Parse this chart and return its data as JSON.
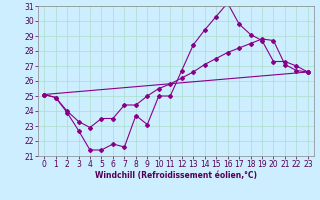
{
  "xlabel": "Windchill (Refroidissement éolien,°C)",
  "bg_color": "#cceeff",
  "grid_color": "#aaddcc",
  "line_color": "#880088",
  "xlim": [
    -0.5,
    23.5
  ],
  "ylim": [
    21,
    31
  ],
  "yticks": [
    21,
    22,
    23,
    24,
    25,
    26,
    27,
    28,
    29,
    30,
    31
  ],
  "xticks": [
    0,
    1,
    2,
    3,
    4,
    5,
    6,
    7,
    8,
    9,
    10,
    11,
    12,
    13,
    14,
    15,
    16,
    17,
    18,
    19,
    20,
    21,
    22,
    23
  ],
  "line1_x": [
    0,
    1,
    2,
    3,
    4,
    5,
    6,
    7,
    8,
    9,
    10,
    11,
    12,
    13,
    14,
    15,
    16,
    17,
    18,
    19,
    20,
    21,
    22,
    23
  ],
  "line1_y": [
    25.1,
    24.9,
    23.9,
    22.7,
    21.4,
    21.4,
    21.8,
    21.6,
    23.7,
    23.1,
    25.0,
    25.0,
    26.7,
    28.4,
    29.4,
    30.3,
    31.2,
    29.8,
    29.1,
    28.7,
    27.3,
    27.3,
    27.0,
    26.6
  ],
  "line2_x": [
    0,
    1,
    2,
    3,
    4,
    5,
    6,
    7,
    8,
    9,
    10,
    11,
    12,
    13,
    14,
    15,
    16,
    17,
    18,
    19,
    20,
    21,
    22,
    23
  ],
  "line2_y": [
    25.1,
    24.9,
    24.0,
    23.3,
    22.9,
    23.5,
    23.5,
    24.4,
    24.4,
    25.0,
    25.5,
    25.8,
    26.2,
    26.6,
    27.1,
    27.5,
    27.9,
    28.2,
    28.5,
    28.8,
    28.7,
    27.1,
    26.7,
    26.6
  ],
  "line3_x": [
    0,
    23
  ],
  "line3_y": [
    25.1,
    26.6
  ],
  "tick_fontsize": 5.5,
  "xlabel_fontsize": 5.5,
  "marker_size": 2.0,
  "linewidth": 0.8
}
